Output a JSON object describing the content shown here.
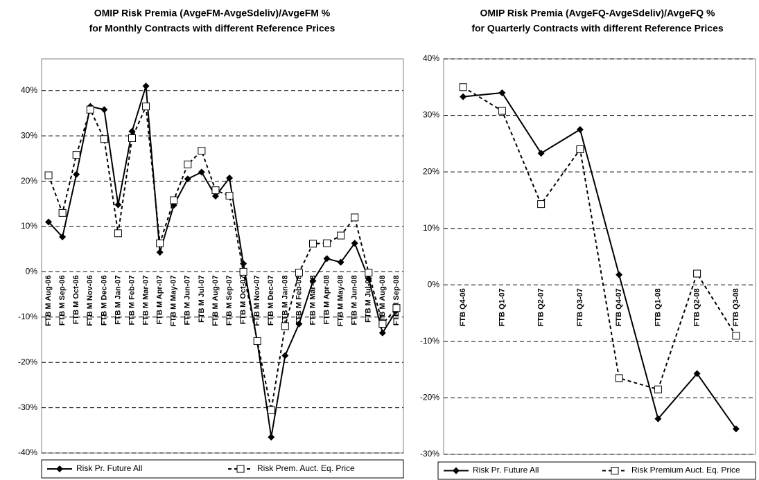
{
  "chart_data": [
    {
      "type": "line",
      "title": "OMIP Risk Premia (AvgeFM-AvgeSdeliv)/AvgeFM %",
      "subtitle": "for Monthly Contracts with different Reference Prices",
      "categories": [
        "FTB M Aug-06",
        "FTB M Sep-06",
        "FTB M Oct-06",
        "FTB M Nov-06",
        "FTB M Dec-06",
        "FTB M Jan-07",
        "FTB M Feb-07",
        "FTB M Mar-07",
        "FTB M Apr-07",
        "FTB M May-07",
        "FTB M Jun-07",
        "FTB M Jul-07",
        "FTB M Aug-07",
        "FTB M Sep-07",
        "FTB M Oct-07",
        "FTB M Nov-07",
        "FTB M Dec-07",
        "FTB M Jan-08",
        "FTB M Feb-08",
        "FTB M Mar-08",
        "FTB M Apr-08",
        "FTB M May-08",
        "FTB M Jun-08",
        "FTB M Jul-08",
        "FTB M Aug-08",
        "FTB M Sep-08"
      ],
      "series": [
        {
          "name": "Risk Pr. Future All",
          "color": "#000000",
          "dashed": false,
          "marker": "diamond",
          "values": [
            11,
            7.7,
            21.5,
            36.5,
            35.8,
            14.8,
            31,
            41,
            4.3,
            14.7,
            20.5,
            22,
            16.7,
            20.7,
            1.8,
            -15.5,
            -36.5,
            -18.5,
            -11.5,
            -2,
            2.9,
            2.1,
            6.3,
            -1.5,
            -13.5,
            -8.5
          ]
        },
        {
          "name": "Risk Prem. Auct. Eq. Price",
          "color": "#000000",
          "dashed": true,
          "marker": "square",
          "values": [
            21.3,
            13,
            25.8,
            35.8,
            29.3,
            8.5,
            29.5,
            36.5,
            6.3,
            15.8,
            23.7,
            26.7,
            18,
            16.8,
            0,
            -15.3,
            -30.5,
            -12,
            -0.2,
            6.2,
            6.3,
            8,
            12,
            -0.2,
            -11.5,
            -8
          ]
        }
      ],
      "ylim": [
        -40,
        47
      ],
      "yticks": [
        {
          "value": -40,
          "label": "-40%"
        },
        {
          "value": -30,
          "label": "-30%"
        },
        {
          "value": -20,
          "label": "-20%"
        },
        {
          "value": -10,
          "label": "-10%"
        },
        {
          "value": 0,
          "label": "0%"
        },
        {
          "value": 10,
          "label": "10%"
        },
        {
          "value": 20,
          "label": "20%"
        },
        {
          "value": 30,
          "label": "30%"
        },
        {
          "value": 40,
          "label": "40%"
        }
      ],
      "grid": true,
      "legend": "bottom"
    },
    {
      "type": "line",
      "title": "OMIP Risk Premia (AvgeFQ-AvgeSdeliv)/AvgeFQ %",
      "subtitle": "for Quarterly Contracts with different Reference Prices",
      "categories": [
        "FTB Q4-06",
        "FTB Q1-07",
        "FTB Q2-07",
        "FTB Q3-07",
        "FTB Q4-07",
        "FTB Q1-08",
        "FTB Q2-08",
        "FTB Q3-08"
      ],
      "series": [
        {
          "name": "Risk Pr. Future All",
          "color": "#000000",
          "dashed": false,
          "marker": "diamond",
          "values": [
            33.3,
            34,
            23.3,
            27.5,
            1.8,
            -23.7,
            -15.7,
            -25.5
          ]
        },
        {
          "name": "Risk Premium Auct. Eq. Price",
          "color": "#000000",
          "dashed": true,
          "marker": "square",
          "values": [
            35,
            30.8,
            14.3,
            24,
            -16.5,
            -18.5,
            2,
            -9
          ]
        }
      ],
      "ylim": [
        -30,
        40
      ],
      "yticks": [
        {
          "value": -30,
          "label": "-30%"
        },
        {
          "value": -20,
          "label": "-20%"
        },
        {
          "value": -10,
          "label": "-10%"
        },
        {
          "value": 0,
          "label": "0%"
        },
        {
          "value": 10,
          "label": "10%"
        },
        {
          "value": 20,
          "label": "20%"
        },
        {
          "value": 30,
          "label": "30%"
        },
        {
          "value": 40,
          "label": "40%"
        }
      ],
      "grid": true,
      "legend": "bottom"
    }
  ]
}
